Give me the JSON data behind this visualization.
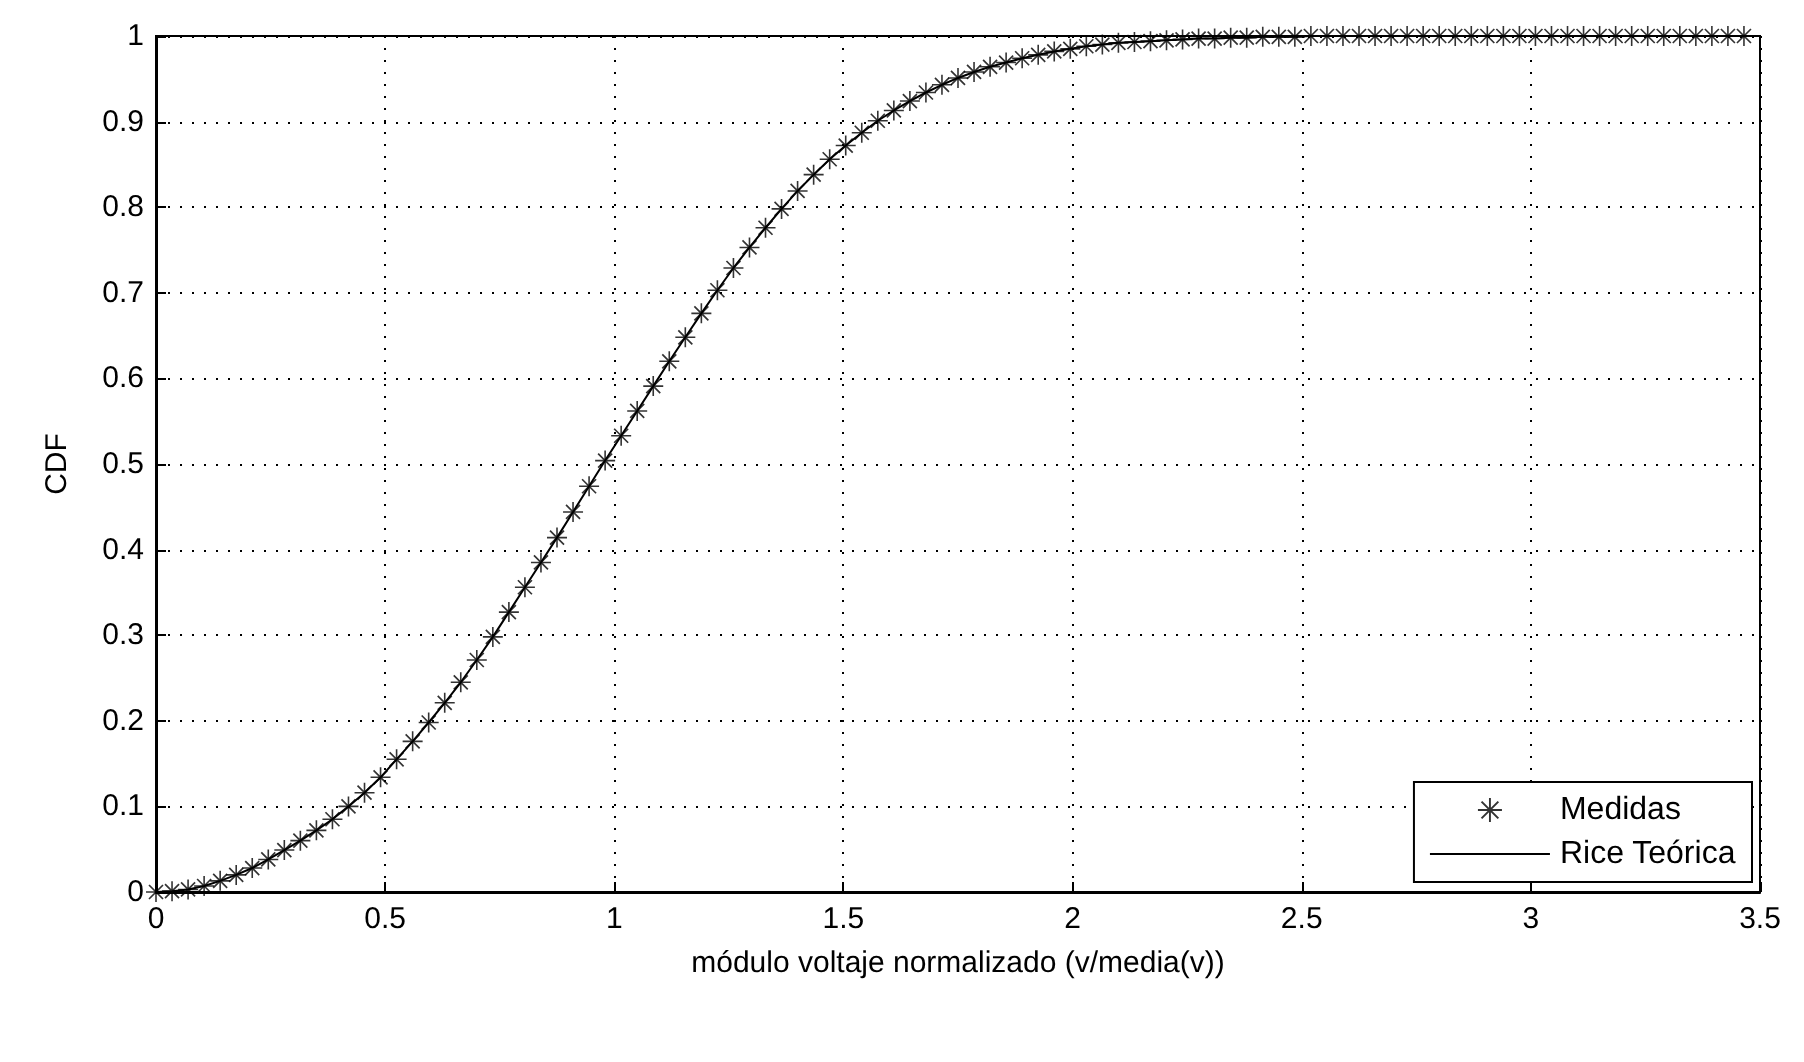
{
  "chart_data": {
    "type": "line",
    "xlabel": "módulo voltaje normalizado (v/media(v))",
    "ylabel": "CDF",
    "x": [
      0,
      0.035,
      0.07,
      0.105,
      0.14,
      0.175,
      0.21,
      0.245,
      0.28,
      0.315,
      0.35,
      0.385,
      0.42,
      0.455,
      0.49,
      0.525,
      0.56,
      0.595,
      0.63,
      0.665,
      0.7,
      0.735,
      0.77,
      0.805,
      0.84,
      0.875,
      0.91,
      0.945,
      0.98,
      1.015,
      1.05,
      1.085,
      1.12,
      1.155,
      1.19,
      1.225,
      1.26,
      1.295,
      1.33,
      1.365,
      1.4,
      1.435,
      1.47,
      1.505,
      1.54,
      1.575,
      1.61,
      1.645,
      1.68,
      1.715,
      1.75,
      1.785,
      1.82,
      1.855,
      1.89,
      1.925,
      1.96,
      1.995,
      2.03,
      2.065,
      2.1,
      2.135,
      2.17,
      2.205,
      2.24,
      2.275,
      2.31,
      2.345,
      2.38,
      2.415,
      2.45,
      2.485,
      2.52,
      2.555,
      2.59,
      2.625,
      2.66,
      2.695,
      2.73,
      2.765,
      2.8,
      2.835,
      2.87,
      2.905,
      2.94,
      2.975,
      3.01,
      3.045,
      3.08,
      3.115,
      3.15,
      3.185,
      3.22,
      3.255,
      3.29,
      3.325,
      3.36,
      3.395,
      3.43,
      3.465
    ],
    "series": [
      {
        "name": "Medidas",
        "type": "scatter",
        "marker": "star",
        "color": "#000000",
        "values": [
          0,
          0.001,
          0.003,
          0.007,
          0.013,
          0.02,
          0.028,
          0.038,
          0.049,
          0.06,
          0.072,
          0.085,
          0.1,
          0.116,
          0.134,
          0.155,
          0.176,
          0.198,
          0.221,
          0.245,
          0.271,
          0.298,
          0.327,
          0.356,
          0.385,
          0.414,
          0.444,
          0.474,
          0.504,
          0.533,
          0.562,
          0.591,
          0.62,
          0.648,
          0.676,
          0.703,
          0.729,
          0.753,
          0.776,
          0.798,
          0.819,
          0.838,
          0.856,
          0.872,
          0.887,
          0.901,
          0.913,
          0.924,
          0.934,
          0.943,
          0.951,
          0.958,
          0.964,
          0.969,
          0.974,
          0.978,
          0.982,
          0.985,
          0.988,
          0.99,
          0.992,
          0.993,
          0.994,
          0.995,
          0.996,
          0.997,
          0.997,
          0.998,
          0.998,
          0.999,
          0.999,
          0.999,
          1,
          1,
          1,
          1,
          1,
          1,
          1,
          1,
          1,
          1,
          1,
          1,
          1,
          1,
          1,
          1,
          1,
          1,
          1,
          1,
          1,
          1,
          1,
          1,
          1,
          1,
          1,
          1
        ]
      },
      {
        "name": "Rice Teórica",
        "marker": "none",
        "line_style": "solid",
        "color": "#000000",
        "values": [
          0,
          0.001,
          0.003,
          0.007,
          0.013,
          0.02,
          0.028,
          0.038,
          0.049,
          0.06,
          0.072,
          0.085,
          0.1,
          0.116,
          0.134,
          0.155,
          0.176,
          0.198,
          0.221,
          0.245,
          0.271,
          0.298,
          0.327,
          0.356,
          0.385,
          0.414,
          0.444,
          0.474,
          0.504,
          0.533,
          0.562,
          0.591,
          0.62,
          0.648,
          0.676,
          0.703,
          0.729,
          0.753,
          0.776,
          0.798,
          0.819,
          0.838,
          0.856,
          0.872,
          0.887,
          0.901,
          0.913,
          0.924,
          0.934,
          0.943,
          0.951,
          0.958,
          0.964,
          0.969,
          0.974,
          0.978,
          0.982,
          0.985,
          0.988,
          0.99,
          0.992,
          0.993,
          0.994,
          0.995,
          0.996,
          0.997,
          0.997,
          0.998,
          0.998,
          0.999,
          0.999,
          0.999,
          1,
          1,
          1,
          1,
          1,
          1,
          1,
          1,
          1,
          1,
          1,
          1,
          1,
          1,
          1,
          1,
          1,
          1,
          1,
          1,
          1,
          1,
          1,
          1,
          1,
          1,
          1,
          1
        ]
      }
    ],
    "xlim": [
      0,
      3.5
    ],
    "xticks": [
      0,
      0.5,
      1,
      1.5,
      2,
      2.5,
      3,
      3.5
    ],
    "ylim": [
      0,
      1
    ],
    "yticks": [
      0,
      0.1,
      0.2,
      0.3,
      0.4,
      0.5,
      0.6,
      0.7,
      0.8,
      0.9,
      1
    ],
    "grid": true,
    "legend": "bottom right"
  }
}
